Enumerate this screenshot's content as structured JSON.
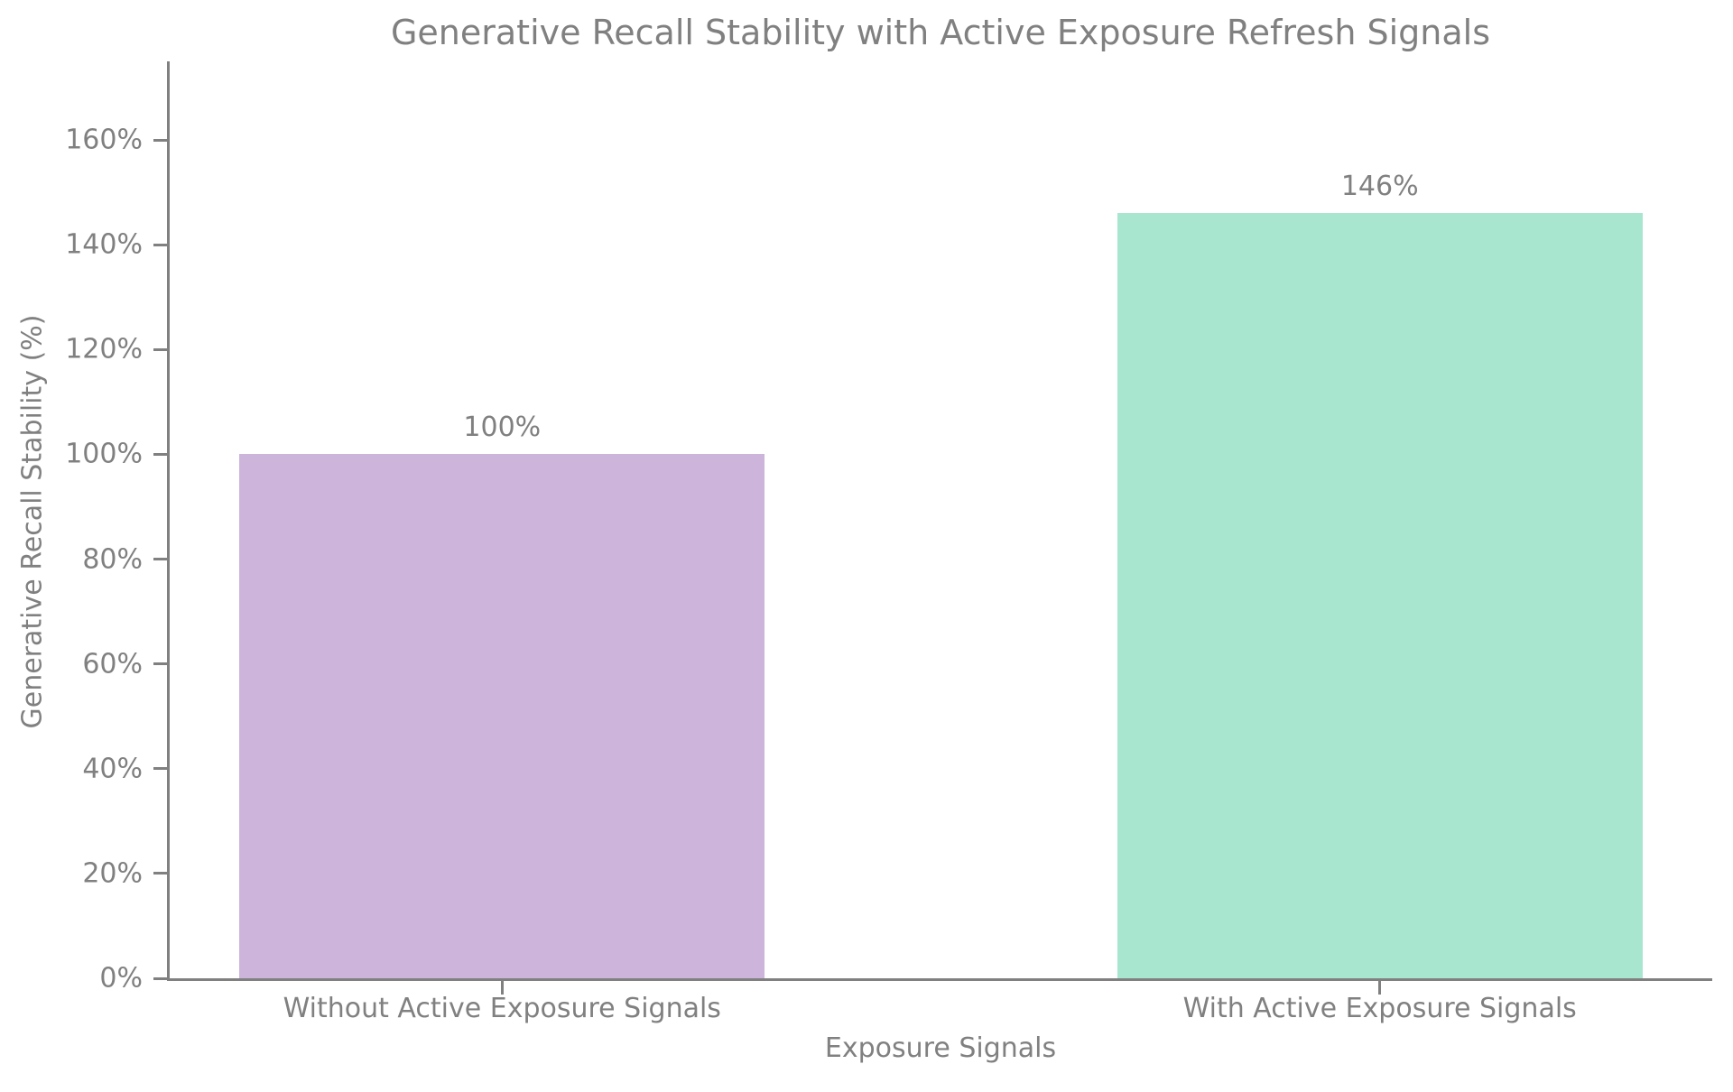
{
  "colors": {
    "background": "#ffffff",
    "text": "#808080",
    "axis": "#808080"
  },
  "chart_data": {
    "type": "bar",
    "title": "Generative Recall Stability with Active Exposure Refresh Signals",
    "xlabel": "Exposure Signals",
    "ylabel": "Generative Recall Stability (%)",
    "categories": [
      "Without Active Exposure Signals",
      "With Active Exposure Signals"
    ],
    "values": [
      100,
      146
    ],
    "bar_labels": [
      "100%",
      "146%"
    ],
    "bar_colors": [
      "#CDB4DB",
      "#A8E6CF"
    ],
    "ylim": [
      0,
      175
    ],
    "yticks": [
      0,
      20,
      40,
      60,
      80,
      100,
      120,
      140,
      160
    ],
    "ytick_labels": [
      "0%",
      "20%",
      "40%",
      "60%",
      "80%",
      "100%",
      "120%",
      "140%",
      "160%"
    ],
    "grid": false,
    "legend": "none",
    "spines": [
      "left",
      "bottom"
    ]
  }
}
